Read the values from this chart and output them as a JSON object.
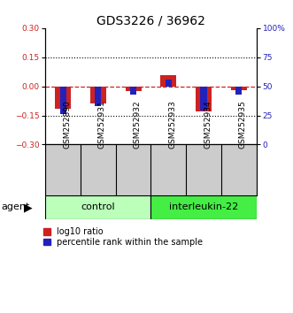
{
  "title": "GDS3226 / 36962",
  "samples": [
    "GSM252890",
    "GSM252931",
    "GSM252932",
    "GSM252933",
    "GSM252934",
    "GSM252935"
  ],
  "log10_ratio": [
    -0.115,
    -0.09,
    -0.025,
    0.058,
    -0.13,
    -0.018
  ],
  "percentile_rank_pct": [
    26,
    33,
    43,
    56,
    29,
    43
  ],
  "ylim_left": [
    -0.3,
    0.3
  ],
  "ylim_right": [
    0,
    100
  ],
  "yticks_left": [
    -0.3,
    -0.15,
    0,
    0.15,
    0.3
  ],
  "yticks_right": [
    0,
    25,
    50,
    75,
    100
  ],
  "hlines_dotted": [
    0.15,
    -0.15
  ],
  "groups": [
    {
      "label": "control",
      "indices": [
        0,
        1,
        2
      ],
      "color": "#bbffbb"
    },
    {
      "label": "interleukin-22",
      "indices": [
        3,
        4,
        5
      ],
      "color": "#44ee44"
    }
  ],
  "red_bar_width": 0.45,
  "blue_bar_width": 0.18,
  "red_color": "#cc2222",
  "blue_color": "#2222bb",
  "title_fontsize": 10,
  "tick_fontsize": 6.5,
  "sample_fontsize": 6.5,
  "group_fontsize": 8,
  "legend_fontsize": 7,
  "agent_fontsize": 8,
  "bg_color": "#ffffff",
  "sample_bg": "#cccccc",
  "legend_items": [
    "log10 ratio",
    "percentile rank within the sample"
  ]
}
